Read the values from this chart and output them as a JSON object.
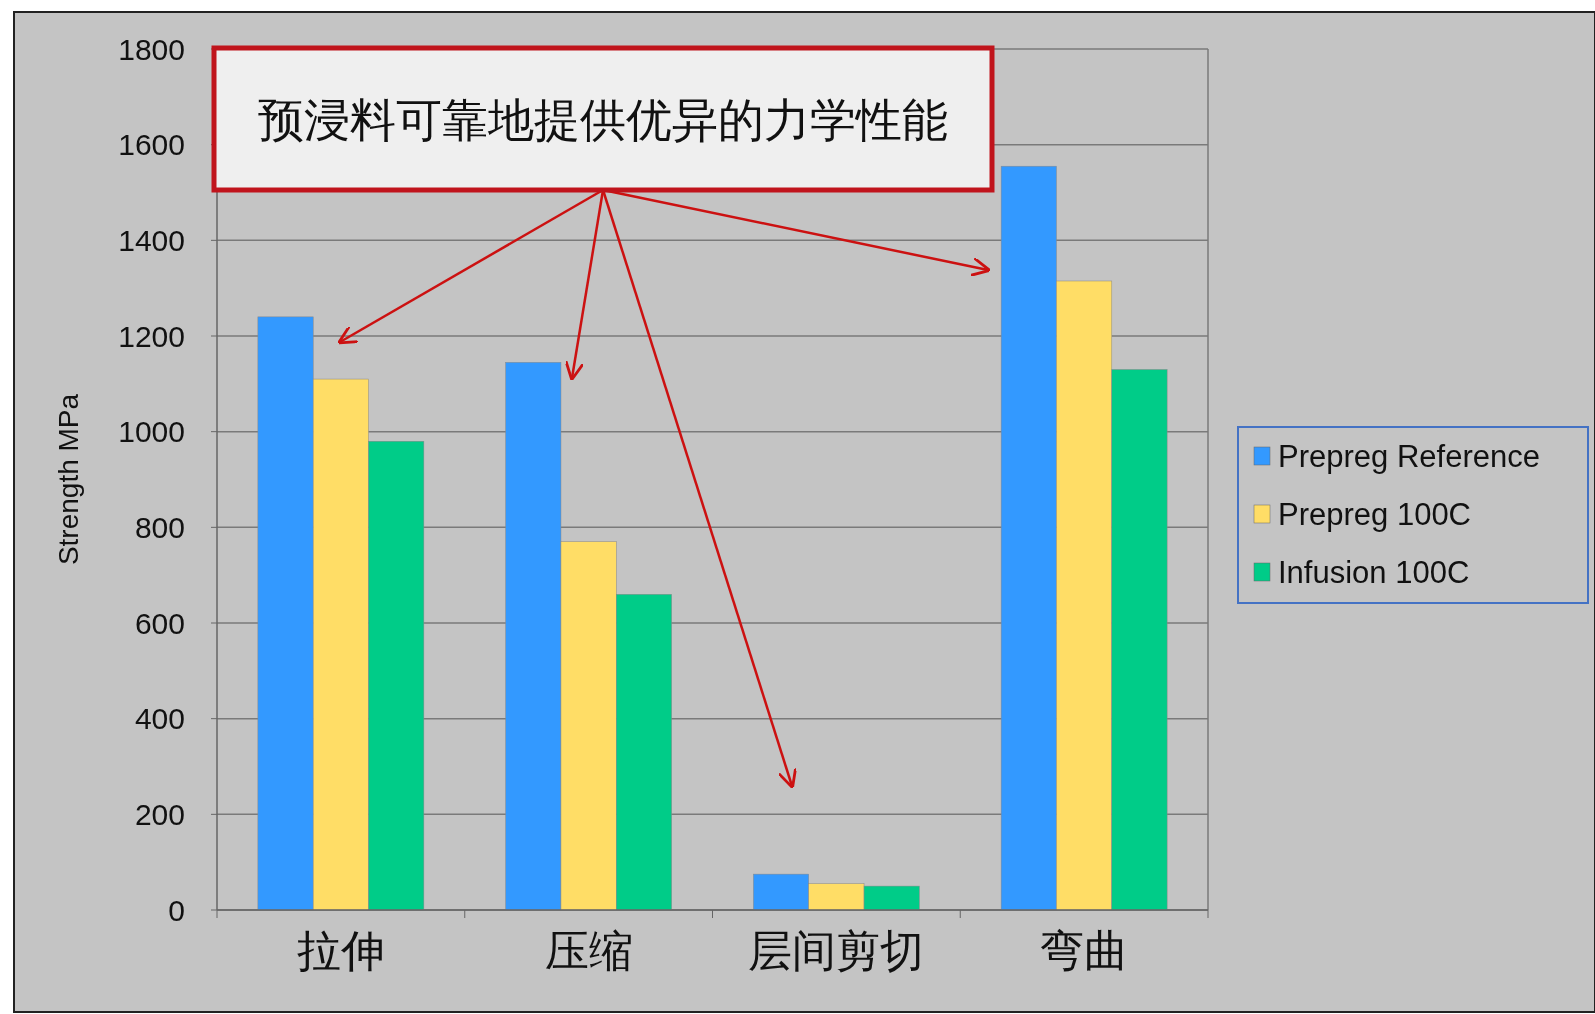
{
  "chart_data": {
    "type": "bar",
    "ylabel": "Strength MPa",
    "categories": [
      "拉伸",
      "压缩",
      "层间剪切",
      "弯曲"
    ],
    "series": [
      {
        "name": "Prepreg Reference",
        "color": "#3399ff",
        "values": [
          1240,
          1145,
          75,
          1555
        ]
      },
      {
        "name": "Prepreg 100C",
        "color": "#ffdd66",
        "values": [
          1110,
          770,
          55,
          1315
        ]
      },
      {
        "name": "Infusion 100C",
        "color": "#00cc88",
        "values": [
          980,
          660,
          50,
          1130
        ]
      }
    ],
    "ylim": [
      0,
      1800
    ],
    "yticks": [
      0,
      200,
      400,
      600,
      800,
      1000,
      1200,
      1400,
      1600,
      1800
    ],
    "grid": "y",
    "legend": "right",
    "annotations": [
      "预浸料可靠地提供优异的力学性能"
    ]
  }
}
